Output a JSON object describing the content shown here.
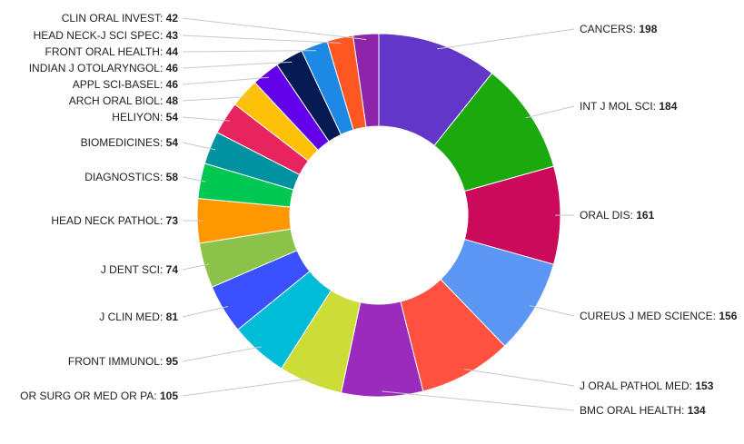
{
  "chart_data": {
    "type": "pie",
    "donut": true,
    "title": "",
    "value_separator": ": ",
    "slices": [
      {
        "label": "CANCERS",
        "value": 198,
        "color": "#6236c9",
        "side": "right"
      },
      {
        "label": "INT J MOL SCI",
        "value": 184,
        "color": "#1aaa0e",
        "side": "right"
      },
      {
        "label": "ORAL DIS",
        "value": 161,
        "color": "#cc0a5c",
        "side": "right"
      },
      {
        "label": "CUREUS J MED SCIENCE",
        "value": 156,
        "color": "#5b96f5",
        "side": "right"
      },
      {
        "label": "J ORAL PATHOL MED",
        "value": 153,
        "color": "#ff5040",
        "side": "right"
      },
      {
        "label": "BMC ORAL HEALTH",
        "value": 134,
        "color": "#9b2bbd",
        "side": "right"
      },
      {
        "label": "OR SURG OR MED OR PA",
        "value": 105,
        "color": "#cddd38",
        "side": "left"
      },
      {
        "label": "FRONT IMMUNOL",
        "value": 95,
        "color": "#00bcd6",
        "side": "left"
      },
      {
        "label": "J CLIN MED",
        "value": 81,
        "color": "#3b50ff",
        "side": "left"
      },
      {
        "label": "J DENT SCI",
        "value": 74,
        "color": "#8bc34a",
        "side": "left"
      },
      {
        "label": "HEAD NECK PATHOL",
        "value": 73,
        "color": "#ff9800",
        "side": "left"
      },
      {
        "label": "DIAGNOSTICS",
        "value": 58,
        "color": "#00c853",
        "side": "left"
      },
      {
        "label": "BIOMEDICINES",
        "value": 54,
        "color": "#00929f",
        "side": "left"
      },
      {
        "label": "HELIYON",
        "value": 54,
        "color": "#e8245f",
        "side": "left"
      },
      {
        "label": "ARCH ORAL BIOL",
        "value": 48,
        "color": "#ffc107",
        "side": "left"
      },
      {
        "label": "APPL SCI-BASEL",
        "value": 46,
        "color": "#6200ea",
        "side": "left"
      },
      {
        "label": "INDIAN J OTOLARYNGOL",
        "value": 46,
        "color": "#061a52",
        "side": "left"
      },
      {
        "label": "FRONT ORAL HEALTH",
        "value": 44,
        "color": "#1e88e5",
        "side": "left"
      },
      {
        "label": "HEAD NECK-J SCI SPEC",
        "value": 43,
        "color": "#ff5722",
        "side": "left"
      },
      {
        "label": "CLIN ORAL INVEST",
        "value": 42,
        "color": "#8e24aa",
        "side": "left"
      }
    ]
  }
}
